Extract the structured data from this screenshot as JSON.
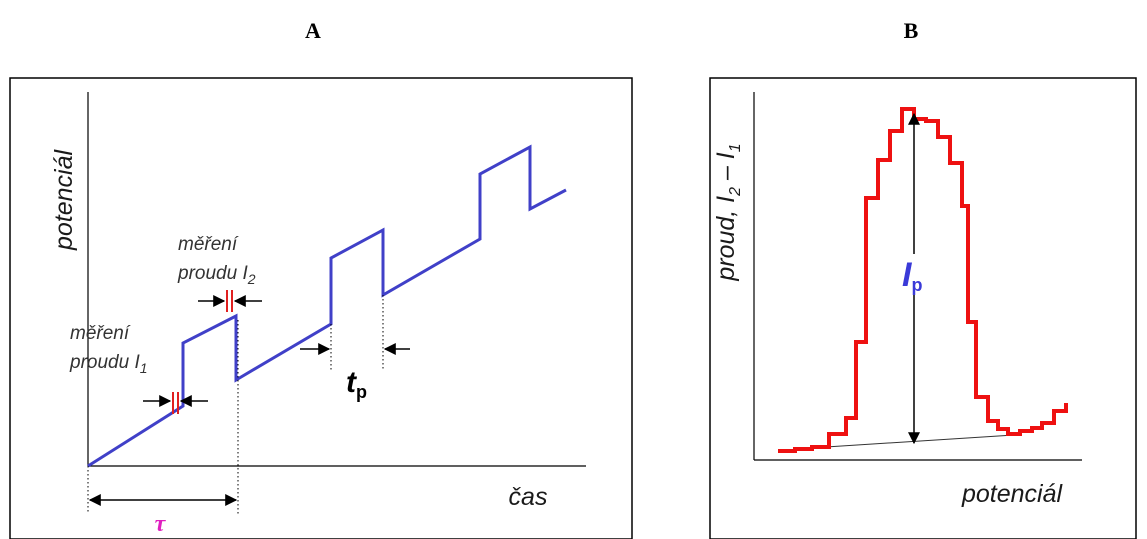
{
  "panel_a": {
    "label": "A",
    "ylabel": "potenciál",
    "xlabel": "čas",
    "measure_i2": {
      "line1": "měření",
      "line2a": "proudu ",
      "line2b": "I",
      "line2c": "2"
    },
    "measure_i1": {
      "line1": "měření",
      "line2a": "proudu ",
      "line2b": "I",
      "line2c": "1"
    },
    "tau": "τ",
    "tp": {
      "main": "t",
      "sub": "p"
    }
  },
  "panel_b": {
    "label": "B",
    "ylabel": {
      "a": "proud, ",
      "b": "I",
      "c": "2",
      "d": " – ",
      "e": "I",
      "f": "1"
    },
    "xlabel": "potenciál",
    "ip": {
      "main": "I",
      "sub": "p"
    }
  },
  "colors": {
    "waveform": "#4040c8",
    "sampling": "#e02020",
    "response": "#ee1111",
    "tau_text": "#e020c0",
    "ip_text": "#3a3ad8"
  }
}
